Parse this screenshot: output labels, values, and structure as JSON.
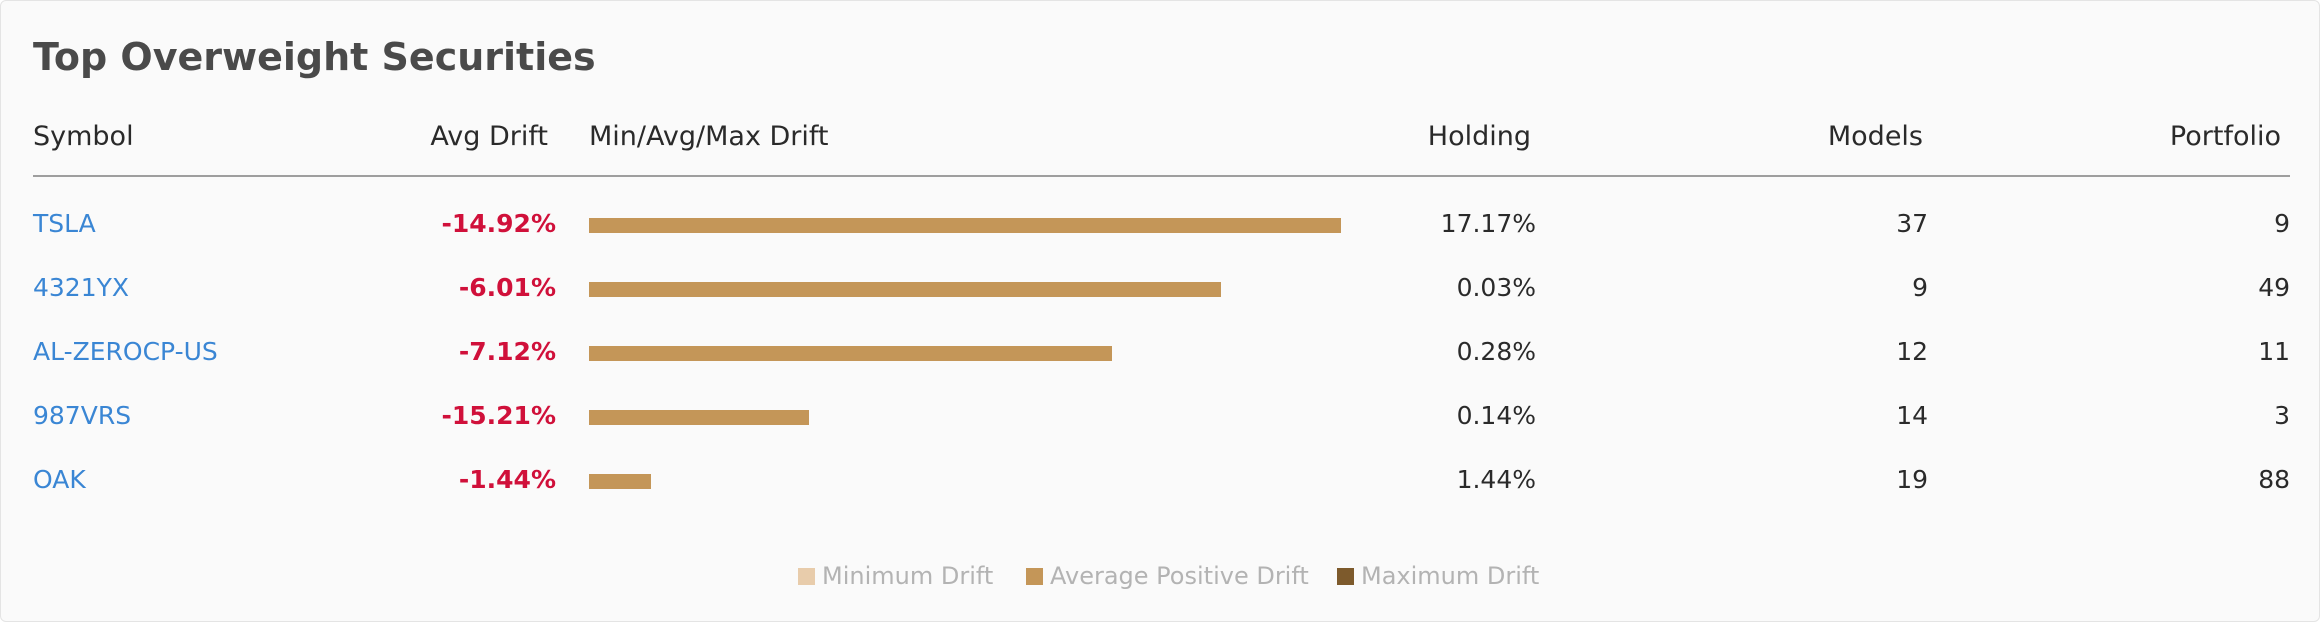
{
  "title": "Top Overweight Securities",
  "columns": {
    "symbol": "Symbol",
    "avg_drift": "Avg Drift",
    "range": "Min/Avg/Max Drift",
    "holding": "Holding",
    "models": "Models",
    "portfolio": "Portfolio"
  },
  "rows": [
    {
      "symbol": "TSLA",
      "avg_drift": "-14.92%",
      "holding": "17.17%",
      "models": "37",
      "portfolio": "9",
      "bar_fraction": 1.0
    },
    {
      "symbol": "4321YX",
      "avg_drift": "-6.01%",
      "holding": "0.03%",
      "models": "9",
      "portfolio": "49",
      "bar_fraction": 0.84
    },
    {
      "symbol": "AL-ZEROCP-US",
      "avg_drift": "-7.12%",
      "holding": "0.28%",
      "models": "12",
      "portfolio": "11",
      "bar_fraction": 0.696
    },
    {
      "symbol": "987VRS",
      "avg_drift": "-15.21%",
      "holding": "0.14%",
      "models": "14",
      "portfolio": "3",
      "bar_fraction": 0.293
    },
    {
      "symbol": "OAK",
      "avg_drift": "-1.44%",
      "holding": "1.44%",
      "models": "19",
      "portfolio": "88",
      "bar_fraction": 0.083
    }
  ],
  "legend": [
    {
      "label": "Minimum Drift",
      "color": "#e8ccab"
    },
    {
      "label": "Average Positive Drift",
      "color": "#c49658"
    },
    {
      "label": "Maximum Drift",
      "color": "#7d5a2c"
    }
  ],
  "colors": {
    "link": "#3a86d4",
    "negative": "#d0103a",
    "bar": "#c49658"
  }
}
